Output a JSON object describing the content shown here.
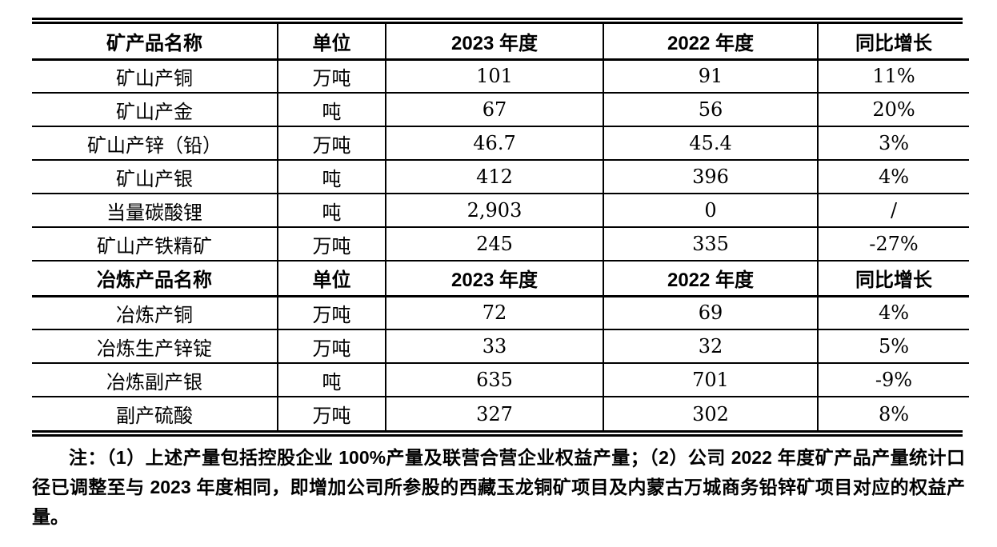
{
  "table": {
    "sections": [
      {
        "header": [
          "矿产品名称",
          "单位",
          "2023 年度",
          "2022 年度",
          "同比增长"
        ],
        "rows": [
          [
            "矿山产铜",
            "万吨",
            "101",
            "91",
            "11%"
          ],
          [
            "矿山产金",
            "吨",
            "67",
            "56",
            "20%"
          ],
          [
            "矿山产锌（铅）",
            "万吨",
            "46.7",
            "45.4",
            "3%"
          ],
          [
            "矿山产银",
            "吨",
            "412",
            "396",
            "4%"
          ],
          [
            "当量碳酸锂",
            "吨",
            "2,903",
            "0",
            "/"
          ],
          [
            "矿山产铁精矿",
            "万吨",
            "245",
            "335",
            "-27%"
          ]
        ]
      },
      {
        "header": [
          "冶炼产品名称",
          "单位",
          "2023 年度",
          "2022 年度",
          "同比增长"
        ],
        "rows": [
          [
            "冶炼产铜",
            "万吨",
            "72",
            "69",
            "4%"
          ],
          [
            "冶炼生产锌锭",
            "万吨",
            "33",
            "32",
            "5%"
          ],
          [
            "冶炼副产银",
            "吨",
            "635",
            "701",
            "-9%"
          ],
          [
            "副产硫酸",
            "万吨",
            "327",
            "302",
            "8%"
          ]
        ]
      }
    ]
  },
  "note": {
    "text": "注：（1）上述产量包括控股企业 100%产量及联营合营企业权益产量；（2）公司 2022 年度矿产品产量统计口径已调整至与 2023 年度相同，即增加公司所参股的西藏玉龙铜矿项目及内蒙古万城商务铅锌矿项目对应的权益产量。"
  }
}
